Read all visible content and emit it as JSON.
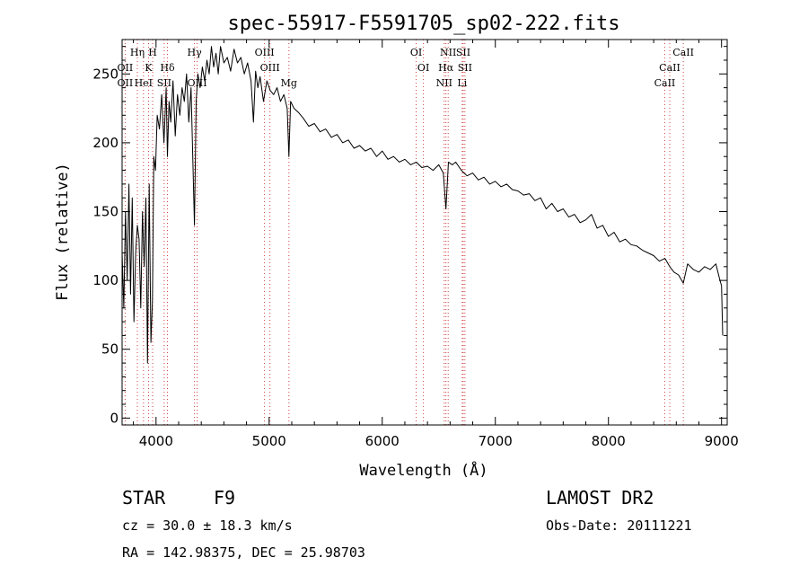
{
  "chart_data": {
    "type": "line",
    "title": "spec-55917-F5591705_sp02-222.fits",
    "xlabel": "Wavelength (Å)",
    "ylabel": "Flux (relative)",
    "xlim": [
      3700,
      9050
    ],
    "ylim": [
      -5,
      275
    ],
    "x_ticks": [
      4000,
      5000,
      6000,
      7000,
      8000,
      9000
    ],
    "y_ticks": [
      0,
      50,
      100,
      150,
      200,
      250
    ],
    "grid": false,
    "line_color": "#000000",
    "marker_line_color": "#d04040",
    "series": [
      {
        "x": [
          3700,
          3715,
          3730,
          3745,
          3760,
          3775,
          3790,
          3805,
          3820,
          3835,
          3850,
          3865,
          3880,
          3895,
          3910,
          3925,
          3940,
          3955,
          3968,
          3980,
          3995,
          4010,
          4030,
          4050,
          4070,
          4090,
          4101,
          4115,
          4130,
          4150,
          4170,
          4190,
          4210,
          4230,
          4250,
          4270,
          4290,
          4310,
          4325,
          4340,
          4355,
          4370,
          4390,
          4410,
          4430,
          4450,
          4470,
          4490,
          4510,
          4530,
          4550,
          4570,
          4600,
          4630,
          4660,
          4690,
          4720,
          4750,
          4780,
          4810,
          4840,
          4861,
          4880,
          4900,
          4920,
          4950,
          4980,
          5010,
          5040,
          5070,
          5100,
          5130,
          5160,
          5175,
          5190,
          5220,
          5260,
          5300,
          5350,
          5400,
          5450,
          5500,
          5550,
          5600,
          5650,
          5700,
          5750,
          5800,
          5850,
          5900,
          5950,
          6000,
          6050,
          6100,
          6150,
          6200,
          6250,
          6300,
          6350,
          6400,
          6450,
          6500,
          6540,
          6563,
          6585,
          6620,
          6650,
          6700,
          6750,
          6800,
          6850,
          6900,
          6950,
          7000,
          7050,
          7100,
          7150,
          7200,
          7250,
          7300,
          7350,
          7400,
          7450,
          7500,
          7550,
          7600,
          7650,
          7700,
          7750,
          7800,
          7850,
          7900,
          7950,
          8000,
          8050,
          8100,
          8150,
          8200,
          8250,
          8300,
          8350,
          8400,
          8450,
          8500,
          8542,
          8580,
          8620,
          8662,
          8700,
          8750,
          8800,
          8850,
          8900,
          8950,
          8980,
          9000,
          9010
        ],
        "y": [
          120,
          80,
          150,
          100,
          170,
          90,
          160,
          70,
          120,
          140,
          130,
          80,
          150,
          110,
          160,
          40,
          170,
          55,
          85,
          190,
          180,
          220,
          210,
          235,
          200,
          240,
          190,
          230,
          215,
          245,
          205,
          235,
          220,
          240,
          230,
          250,
          215,
          240,
          190,
          140,
          230,
          250,
          240,
          255,
          245,
          260,
          250,
          270,
          255,
          265,
          250,
          270,
          258,
          262,
          252,
          268,
          258,
          262,
          250,
          258,
          245,
          215,
          252,
          240,
          248,
          230,
          245,
          238,
          235,
          240,
          230,
          235,
          225,
          190,
          230,
          225,
          222,
          218,
          212,
          214,
          208,
          210,
          204,
          206,
          200,
          202,
          196,
          198,
          194,
          196,
          190,
          194,
          188,
          190,
          186,
          188,
          184,
          186,
          182,
          183,
          180,
          184,
          178,
          152,
          186,
          184,
          186,
          180,
          176,
          178,
          173,
          175,
          170,
          172,
          168,
          170,
          166,
          165,
          162,
          163,
          158,
          160,
          152,
          156,
          150,
          152,
          146,
          148,
          142,
          144,
          148,
          138,
          140,
          132,
          135,
          128,
          130,
          126,
          125,
          122,
          120,
          118,
          114,
          116,
          110,
          106,
          104,
          98,
          112,
          108,
          106,
          110,
          108,
          112,
          102,
          96,
          60
        ],
        "name": ""
      }
    ],
    "lines": [
      {
        "wl": 3727,
        "label": "OII",
        "row": 2
      },
      {
        "wl": 3727,
        "label": "OII",
        "row": 3
      },
      {
        "wl": 3835,
        "label": "Hη",
        "row": 1
      },
      {
        "wl": 3889,
        "label": "HeI",
        "row": 3
      },
      {
        "wl": 3934,
        "label": "K",
        "row": 2
      },
      {
        "wl": 3970,
        "label": "H",
        "row": 1
      },
      {
        "wl": 4072,
        "label": "SII",
        "row": 3
      },
      {
        "wl": 4101,
        "label": "Hδ",
        "row": 2
      },
      {
        "wl": 4340,
        "label": "Hγ",
        "row": 1
      },
      {
        "wl": 4363,
        "label": "OIII",
        "row": 3
      },
      {
        "wl": 4959,
        "label": "OIII",
        "row": 1
      },
      {
        "wl": 5007,
        "label": "OIII",
        "row": 2
      },
      {
        "wl": 5175,
        "label": "Mg",
        "row": 3
      },
      {
        "wl": 6300,
        "label": "OI",
        "row": 1
      },
      {
        "wl": 6364,
        "label": "OI",
        "row": 2
      },
      {
        "wl": 6548,
        "label": "NII",
        "row": 3
      },
      {
        "wl": 6563,
        "label": "Hα",
        "row": 2
      },
      {
        "wl": 6583,
        "label": "NII",
        "row": 1
      },
      {
        "wl": 6716,
        "label": "SII",
        "row": 1
      },
      {
        "wl": 6731,
        "label": "SII",
        "row": 2
      },
      {
        "wl": 6707,
        "label": "Li",
        "row": 3
      },
      {
        "wl": 8498,
        "label": "CaII",
        "row": 3
      },
      {
        "wl": 8542,
        "label": "CaII",
        "row": 2
      },
      {
        "wl": 8662,
        "label": "CaII",
        "row": 1
      }
    ]
  },
  "info": {
    "class": "STAR",
    "subclass": "F9",
    "cz": "cz = 30.0 ± 18.3 km/s",
    "coords": "RA = 142.98375, DEC =  25.98703",
    "survey": "LAMOST DR2",
    "obs_date": "Obs-Date: 20111221"
  }
}
